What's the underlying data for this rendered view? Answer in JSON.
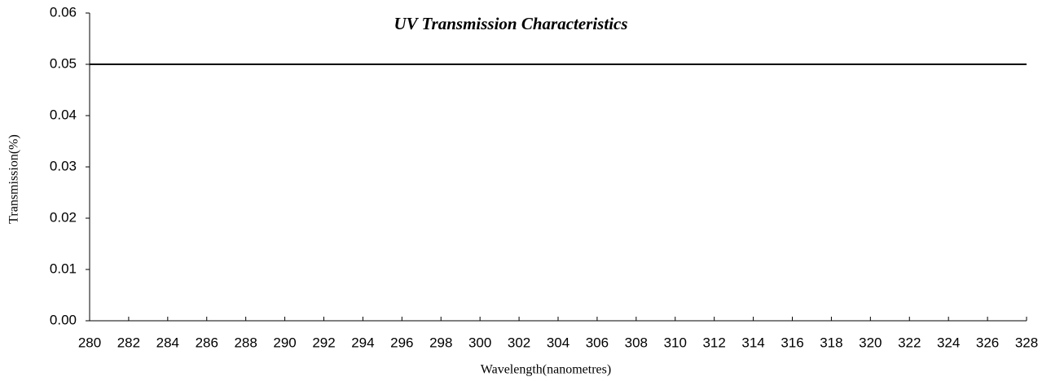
{
  "chart_data": {
    "type": "line",
    "title": "UV Transmission Characteristics",
    "xlabel": "Wavelength(nanometres)",
    "ylabel": "Transmission(%)",
    "x": [
      280,
      282,
      284,
      286,
      288,
      290,
      292,
      294,
      296,
      298,
      300,
      302,
      304,
      306,
      308,
      310,
      312,
      314,
      316,
      318,
      320,
      322,
      324,
      326,
      328
    ],
    "series": [
      {
        "color": "#000000",
        "values": [
          0.05,
          0.05,
          0.05,
          0.05,
          0.05,
          0.05,
          0.05,
          0.05,
          0.05,
          0.05,
          0.05,
          0.05,
          0.05,
          0.05,
          0.05,
          0.05,
          0.05,
          0.05,
          0.05,
          0.05,
          0.05,
          0.05,
          0.05,
          0.05,
          0.05
        ]
      }
    ],
    "xlim": [
      280,
      328
    ],
    "xticks": [
      280,
      282,
      284,
      286,
      288,
      290,
      292,
      294,
      296,
      298,
      300,
      302,
      304,
      306,
      308,
      310,
      312,
      314,
      316,
      318,
      320,
      322,
      324,
      326,
      328
    ],
    "ylim": [
      0,
      0.06
    ],
    "yticks": [
      {
        "value": 0,
        "label": "0.00"
      },
      0.01,
      0.02,
      0.03,
      0.04,
      0.05,
      0.06
    ],
    "grid": false
  }
}
